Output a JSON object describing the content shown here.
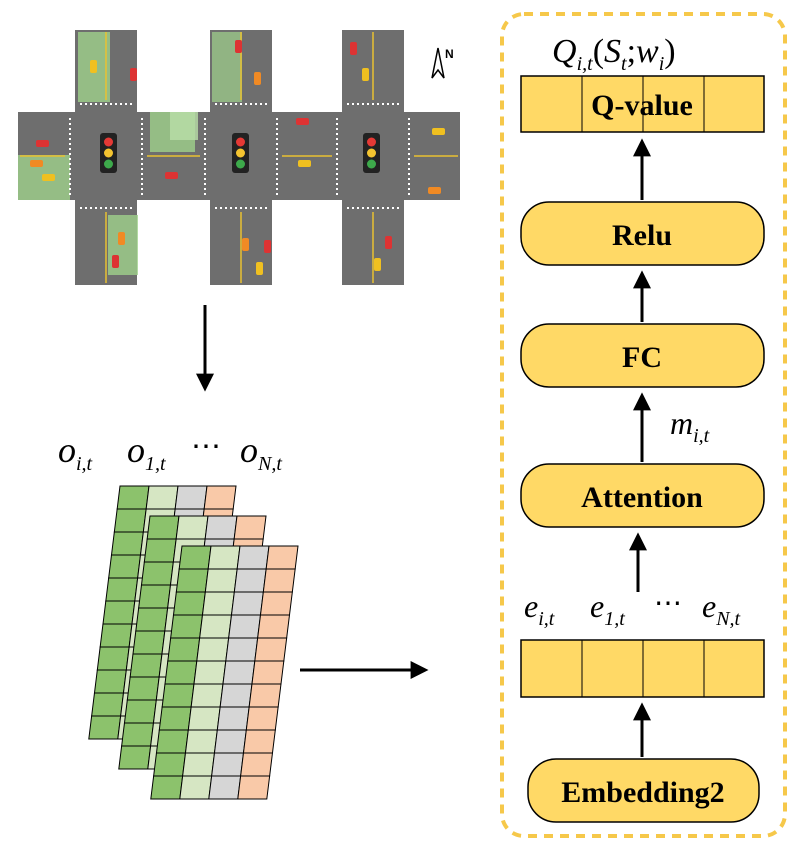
{
  "map": {
    "north_label": "N"
  },
  "observations": {
    "o_i": {
      "base": "o",
      "sub": "i,t"
    },
    "o_1": {
      "base": "o",
      "sub": "1,t"
    },
    "dots": "⋯",
    "o_N": {
      "base": "o",
      "sub": "N,t"
    }
  },
  "network": {
    "q_label": {
      "Q": "Q",
      "sub": "i,t",
      "S": "S",
      "S_sub": "t",
      "w": "w",
      "w_sub": "i"
    },
    "q_value_label": "Q-value",
    "relu_label": "Relu",
    "fc_label": "FC",
    "message_label": {
      "base": "m",
      "sub": "i,t"
    },
    "attention_label": "Attention",
    "embeddings": {
      "e_i": {
        "base": "e",
        "sub": "i,t"
      },
      "e_1": {
        "base": "e",
        "sub": "1,t"
      },
      "dots": "⋯",
      "e_N": {
        "base": "e",
        "sub": "N,t"
      }
    },
    "embedding_label": "Embedding2"
  },
  "colors": {
    "box_fill": "#FFD966",
    "dashed_border": "#F6C84A",
    "green_dark": "#8CC26C",
    "green_light": "#D6E6C3",
    "gray": "#D6D6D6",
    "peach": "#F9C9A8",
    "road": "#6E6E6E",
    "grass": "#9FD18B"
  }
}
